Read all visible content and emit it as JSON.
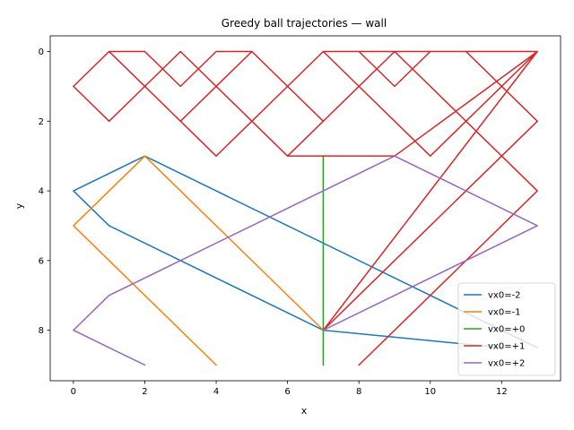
{
  "chart_data": {
    "type": "line",
    "title": "Greedy ball trajectories — wall",
    "xlabel": "x",
    "ylabel": "y",
    "xlim": [
      -0.65,
      13.65
    ],
    "ylim": [
      9.45,
      -0.45
    ],
    "y_inverted": true,
    "xticks": [
      0,
      2,
      4,
      6,
      8,
      10,
      12
    ],
    "yticks": [
      0,
      2,
      4,
      6,
      8
    ],
    "grid": false,
    "legend_position": "lower-right",
    "series": [
      {
        "name": "vx0=-2",
        "color": "#1f77b4",
        "points": [
          [
            12,
            8.5
          ],
          [
            7,
            8
          ],
          [
            1,
            5
          ],
          [
            0,
            4
          ],
          [
            2,
            3
          ],
          [
            13,
            8.5
          ]
        ]
      },
      {
        "name": "vx0=-1",
        "color": "#ff7f0e",
        "points": [
          [
            4,
            9
          ],
          [
            0,
            5
          ],
          [
            2,
            3
          ],
          [
            7,
            8
          ]
        ]
      },
      {
        "name": "vx0=+0",
        "color": "#2ca02c",
        "points": [
          [
            7,
            9
          ],
          [
            7,
            3
          ]
        ]
      },
      {
        "name": "vx0=+1",
        "color": "#d62728",
        "points": [
          [
            8,
            9
          ],
          [
            13,
            4
          ],
          [
            9,
            0
          ],
          [
            8,
            1
          ],
          [
            7,
            0
          ],
          [
            5,
            2
          ],
          [
            3,
            0
          ],
          [
            2,
            1
          ],
          [
            1,
            0
          ],
          [
            0,
            1
          ],
          [
            1,
            2
          ],
          [
            2,
            1
          ],
          [
            4,
            3
          ],
          [
            5,
            2
          ],
          [
            7,
            0
          ],
          [
            8,
            0
          ],
          [
            9,
            1
          ],
          [
            10,
            0
          ],
          [
            11,
            0
          ],
          [
            13,
            2
          ],
          [
            10,
            5
          ],
          [
            7,
            8
          ],
          [
            13,
            2
          ],
          [
            10,
            5
          ],
          [
            12,
            3
          ],
          [
            13,
            4
          ],
          [
            10,
            1
          ],
          [
            9,
            0
          ],
          [
            7,
            2
          ],
          [
            5,
            0
          ],
          [
            4,
            0
          ],
          [
            3,
            1
          ],
          [
            2,
            0
          ],
          [
            1,
            0
          ],
          [
            0,
            1
          ],
          [
            1,
            2
          ],
          [
            2,
            1
          ],
          [
            3,
            2
          ],
          [
            5,
            0
          ],
          [
            6,
            1
          ],
          [
            7,
            0
          ],
          [
            13,
            0
          ],
          [
            9,
            3
          ],
          [
            6,
            3
          ],
          [
            4,
            1
          ],
          [
            3,
            2
          ],
          [
            1,
            0
          ],
          [
            0,
            1
          ],
          [
            1,
            2
          ],
          [
            3,
            0
          ],
          [
            4,
            1
          ],
          [
            6,
            3
          ],
          [
            7,
            2
          ],
          [
            8,
            1
          ],
          [
            10,
            3
          ],
          [
            13,
            0
          ],
          [
            7,
            8
          ]
        ]
      },
      {
        "name": "vx0=+2",
        "color": "#9467bd",
        "points": [
          [
            2,
            9
          ],
          [
            0,
            8
          ],
          [
            1,
            7
          ],
          [
            7,
            4
          ],
          [
            9,
            3
          ],
          [
            13,
            5
          ],
          [
            7,
            8
          ]
        ]
      }
    ]
  }
}
